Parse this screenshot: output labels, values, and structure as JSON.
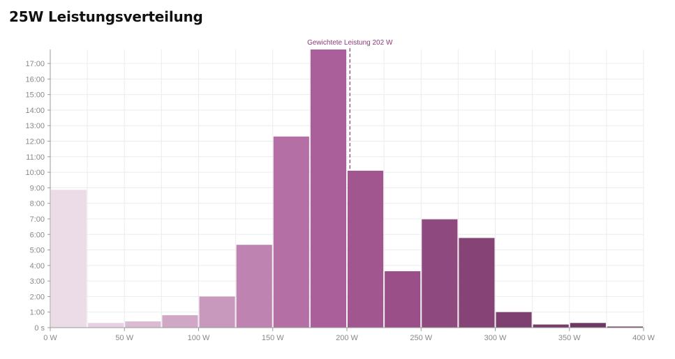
{
  "chart_data": {
    "type": "bar",
    "title": "25W Leistungsverteilung",
    "bin_width_w": 25,
    "bins": [
      {
        "start": 0,
        "end": 25,
        "value": 8.87
      },
      {
        "start": 25,
        "end": 50,
        "value": 0.3
      },
      {
        "start": 50,
        "end": 75,
        "value": 0.4
      },
      {
        "start": 75,
        "end": 100,
        "value": 0.8
      },
      {
        "start": 100,
        "end": 125,
        "value": 2.0
      },
      {
        "start": 125,
        "end": 150,
        "value": 5.33
      },
      {
        "start": 150,
        "end": 175,
        "value": 12.3
      },
      {
        "start": 175,
        "end": 200,
        "value": 17.9
      },
      {
        "start": 200,
        "end": 225,
        "value": 10.1
      },
      {
        "start": 225,
        "end": 250,
        "value": 3.63
      },
      {
        "start": 250,
        "end": 275,
        "value": 6.97
      },
      {
        "start": 275,
        "end": 300,
        "value": 5.77
      },
      {
        "start": 300,
        "end": 325,
        "value": 1.0
      },
      {
        "start": 325,
        "end": 350,
        "value": 0.2
      },
      {
        "start": 350,
        "end": 375,
        "value": 0.3
      },
      {
        "start": 375,
        "end": 400,
        "value": 0.07
      }
    ],
    "bar_colors": [
      "#ecdce8",
      "#e6d0e1",
      "#dabbd3",
      "#d0a8c6",
      "#c898bd",
      "#bf83b1",
      "#b470a4",
      "#ab5f9a",
      "#a25690",
      "#9a4f88",
      "#8e497e",
      "#864476",
      "#7e4070",
      "#773c69",
      "#6f3763",
      "#68335c"
    ],
    "xlim": [
      0,
      400
    ],
    "ylim": [
      0,
      17.9
    ],
    "x_ticks": [
      {
        "value": 0,
        "label": "0 W"
      },
      {
        "value": 50,
        "label": "50 W"
      },
      {
        "value": 100,
        "label": "100 W"
      },
      {
        "value": 150,
        "label": "150 W"
      },
      {
        "value": 200,
        "label": "200 W"
      },
      {
        "value": 250,
        "label": "250 W"
      },
      {
        "value": 300,
        "label": "300 W"
      },
      {
        "value": 350,
        "label": "350 W"
      },
      {
        "value": 400,
        "label": "400 W"
      }
    ],
    "x_grid_values": [
      0,
      25,
      50,
      75,
      100,
      125,
      150,
      175,
      200,
      225,
      250,
      275,
      300,
      325,
      350,
      375,
      400
    ],
    "y_ticks": [
      {
        "value": 0,
        "label": "0 s"
      },
      {
        "value": 1,
        "label": "1:00"
      },
      {
        "value": 2,
        "label": "2:00"
      },
      {
        "value": 3,
        "label": "3:00"
      },
      {
        "value": 4,
        "label": "4:00"
      },
      {
        "value": 5,
        "label": "5:00"
      },
      {
        "value": 6,
        "label": "6:00"
      },
      {
        "value": 7,
        "label": "7:00"
      },
      {
        "value": 8,
        "label": "8:00"
      },
      {
        "value": 9,
        "label": "9:00"
      },
      {
        "value": 10,
        "label": "10:00"
      },
      {
        "value": 11,
        "label": "11:00"
      },
      {
        "value": 12,
        "label": "12:00"
      },
      {
        "value": 13,
        "label": "13:00"
      },
      {
        "value": 14,
        "label": "14:00"
      },
      {
        "value": 15,
        "label": "15:00"
      },
      {
        "value": 16,
        "label": "16:00"
      },
      {
        "value": 17,
        "label": "17:00"
      }
    ],
    "grid": true,
    "annotation": {
      "x": 202,
      "label": "Gewichtete Leistung 202 W",
      "style": "dashed",
      "color": "#8a3a78"
    }
  }
}
